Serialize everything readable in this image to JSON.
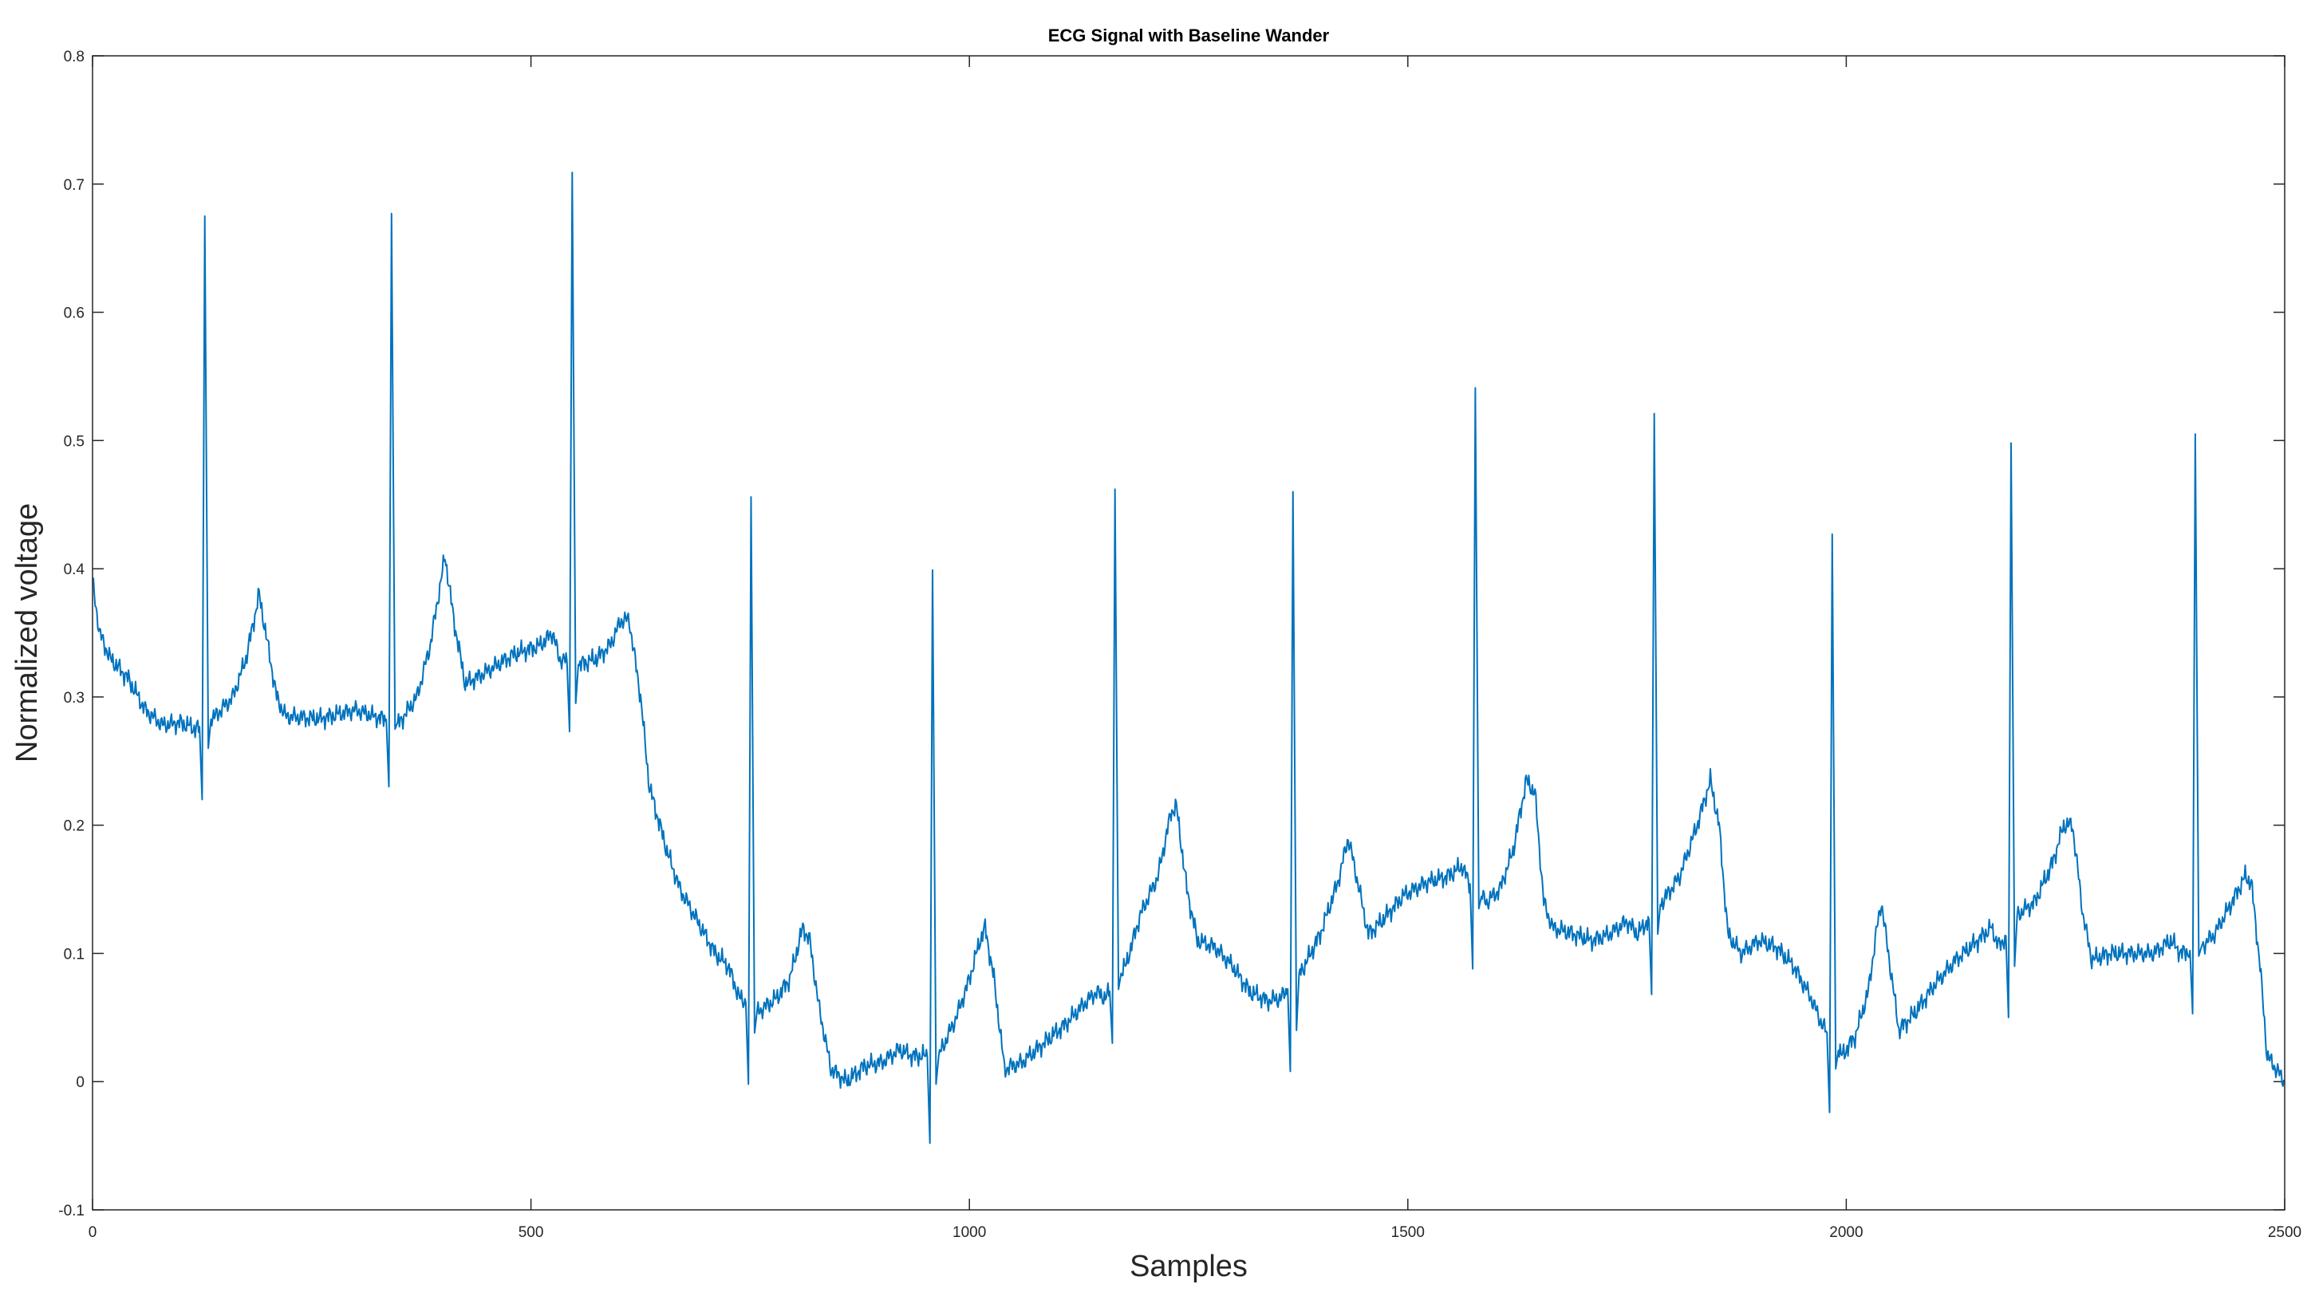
{
  "chart_data": {
    "type": "line",
    "title": "ECG Signal with Baseline Wander",
    "xlabel": "Samples",
    "ylabel": "Normalized voltage",
    "xlim": [
      0,
      2500
    ],
    "ylim": [
      -0.1,
      0.8
    ],
    "xticks": [
      0,
      500,
      1000,
      1500,
      2000,
      2500
    ],
    "xtick_labels": [
      "0",
      "500",
      "1000",
      "1500",
      "2000",
      "2500"
    ],
    "yticks": [
      -0.1,
      0,
      0.1,
      0.2,
      0.3,
      0.4,
      0.5,
      0.6,
      0.7,
      0.8
    ],
    "ytick_labels": [
      "-0.1",
      "0",
      "0.1",
      "0.2",
      "0.3",
      "0.4",
      "0.5",
      "0.6",
      "0.7",
      "0.8"
    ],
    "grid": false,
    "box": true,
    "line_color": "#0072BD",
    "baseline": [
      [
        0,
        0.39
      ],
      [
        8,
        0.35
      ],
      [
        20,
        0.33
      ],
      [
        40,
        0.315
      ],
      [
        60,
        0.29
      ],
      [
        80,
        0.278
      ],
      [
        100,
        0.28
      ],
      [
        118,
        0.275
      ],
      [
        140,
        0.285
      ],
      [
        160,
        0.3
      ],
      [
        175,
        0.33
      ],
      [
        190,
        0.38
      ],
      [
        200,
        0.34
      ],
      [
        210,
        0.3
      ],
      [
        220,
        0.285
      ],
      [
        260,
        0.283
      ],
      [
        300,
        0.29
      ],
      [
        320,
        0.285
      ],
      [
        350,
        0.28
      ],
      [
        370,
        0.3
      ],
      [
        385,
        0.34
      ],
      [
        402,
        0.41
      ],
      [
        412,
        0.36
      ],
      [
        425,
        0.31
      ],
      [
        450,
        0.32
      ],
      [
        480,
        0.333
      ],
      [
        510,
        0.34
      ],
      [
        525,
        0.35
      ],
      [
        532,
        0.33
      ],
      [
        555,
        0.325
      ],
      [
        575,
        0.33
      ],
      [
        590,
        0.34
      ],
      [
        603,
        0.36
      ],
      [
        612,
        0.36
      ],
      [
        625,
        0.3
      ],
      [
        635,
        0.23
      ],
      [
        655,
        0.18
      ],
      [
        670,
        0.15
      ],
      [
        690,
        0.125
      ],
      [
        710,
        0.1
      ],
      [
        725,
        0.09
      ],
      [
        738,
        0.065
      ],
      [
        760,
        0.055
      ],
      [
        780,
        0.065
      ],
      [
        795,
        0.08
      ],
      [
        810,
        0.12
      ],
      [
        818,
        0.11
      ],
      [
        828,
        0.06
      ],
      [
        842,
        0.01
      ],
      [
        860,
        0.0
      ],
      [
        880,
        0.012
      ],
      [
        900,
        0.015
      ],
      [
        920,
        0.025
      ],
      [
        935,
        0.02
      ],
      [
        965,
        0.02
      ],
      [
        985,
        0.05
      ],
      [
        1000,
        0.08
      ],
      [
        1012,
        0.11
      ],
      [
        1018,
        0.12
      ],
      [
        1028,
        0.08
      ],
      [
        1040,
        0.01
      ],
      [
        1060,
        0.015
      ],
      [
        1085,
        0.03
      ],
      [
        1110,
        0.045
      ],
      [
        1130,
        0.06
      ],
      [
        1145,
        0.07
      ],
      [
        1155,
        0.065
      ],
      [
        1178,
        0.09
      ],
      [
        1195,
        0.13
      ],
      [
        1215,
        0.16
      ],
      [
        1230,
        0.21
      ],
      [
        1236,
        0.215
      ],
      [
        1248,
        0.15
      ],
      [
        1260,
        0.11
      ],
      [
        1280,
        0.105
      ],
      [
        1300,
        0.09
      ],
      [
        1320,
        0.07
      ],
      [
        1340,
        0.063
      ],
      [
        1355,
        0.065
      ],
      [
        1382,
        0.09
      ],
      [
        1400,
        0.115
      ],
      [
        1420,
        0.155
      ],
      [
        1432,
        0.19
      ],
      [
        1440,
        0.165
      ],
      [
        1455,
        0.115
      ],
      [
        1470,
        0.125
      ],
      [
        1495,
        0.145
      ],
      [
        1520,
        0.155
      ],
      [
        1545,
        0.16
      ],
      [
        1562,
        0.168
      ],
      [
        1570,
        0.155
      ],
      [
        1590,
        0.14
      ],
      [
        1605,
        0.15
      ],
      [
        1620,
        0.18
      ],
      [
        1635,
        0.235
      ],
      [
        1645,
        0.225
      ],
      [
        1655,
        0.14
      ],
      [
        1665,
        0.12
      ],
      [
        1690,
        0.115
      ],
      [
        1710,
        0.11
      ],
      [
        1730,
        0.115
      ],
      [
        1750,
        0.125
      ],
      [
        1762,
        0.115
      ],
      [
        1790,
        0.14
      ],
      [
        1810,
        0.16
      ],
      [
        1830,
        0.2
      ],
      [
        1845,
        0.235
      ],
      [
        1855,
        0.2
      ],
      [
        1865,
        0.115
      ],
      [
        1880,
        0.1
      ],
      [
        1900,
        0.11
      ],
      [
        1920,
        0.105
      ],
      [
        1940,
        0.09
      ],
      [
        1960,
        0.065
      ],
      [
        1972,
        0.045
      ],
      [
        1995,
        0.02
      ],
      [
        2010,
        0.035
      ],
      [
        2025,
        0.07
      ],
      [
        2035,
        0.12
      ],
      [
        2040,
        0.14
      ],
      [
        2050,
        0.09
      ],
      [
        2060,
        0.04
      ],
      [
        2080,
        0.055
      ],
      [
        2100,
        0.075
      ],
      [
        2125,
        0.095
      ],
      [
        2150,
        0.11
      ],
      [
        2165,
        0.12
      ],
      [
        2175,
        0.105
      ],
      [
        2195,
        0.13
      ],
      [
        2215,
        0.14
      ],
      [
        2235,
        0.17
      ],
      [
        2248,
        0.2
      ],
      [
        2258,
        0.2
      ],
      [
        2270,
        0.13
      ],
      [
        2280,
        0.095
      ],
      [
        2300,
        0.1
      ],
      [
        2325,
        0.1
      ],
      [
        2350,
        0.1
      ],
      [
        2370,
        0.11
      ],
      [
        2382,
        0.1
      ],
      [
        2405,
        0.105
      ],
      [
        2420,
        0.115
      ],
      [
        2440,
        0.14
      ],
      [
        2455,
        0.16
      ],
      [
        2462,
        0.155
      ],
      [
        2472,
        0.09
      ],
      [
        2480,
        0.02
      ],
      [
        2490,
        0.01
      ],
      [
        2500,
        0.0
      ]
    ],
    "beats": [
      {
        "peak_x": 128,
        "peak_y": 0.675,
        "q_y": 0.22,
        "s_y": 0.26
      },
      {
        "peak_x": 341,
        "peak_y": 0.677,
        "q_y": 0.23,
        "s_y": 0.275
      },
      {
        "peak_x": 547,
        "peak_y": 0.709,
        "q_y": 0.273,
        "s_y": 0.295
      },
      {
        "peak_x": 751,
        "peak_y": 0.456,
        "q_y": -0.002,
        "s_y": 0.038
      },
      {
        "peak_x": 958,
        "peak_y": 0.399,
        "q_y": -0.048,
        "s_y": -0.002
      },
      {
        "peak_x": 1166,
        "peak_y": 0.462,
        "q_y": 0.03,
        "s_y": 0.072
      },
      {
        "peak_x": 1369,
        "peak_y": 0.46,
        "q_y": 0.008,
        "s_y": 0.04
      },
      {
        "peak_x": 1577,
        "peak_y": 0.541,
        "q_y": 0.088,
        "s_y": 0.135
      },
      {
        "peak_x": 1781,
        "peak_y": 0.521,
        "q_y": 0.068,
        "s_y": 0.115
      },
      {
        "peak_x": 1984,
        "peak_y": 0.427,
        "q_y": -0.024,
        "s_y": 0.01
      },
      {
        "peak_x": 2188,
        "peak_y": 0.498,
        "q_y": 0.05,
        "s_y": 0.09
      },
      {
        "peak_x": 2398,
        "peak_y": 0.505,
        "q_y": 0.053,
        "s_y": 0.098
      }
    ]
  }
}
